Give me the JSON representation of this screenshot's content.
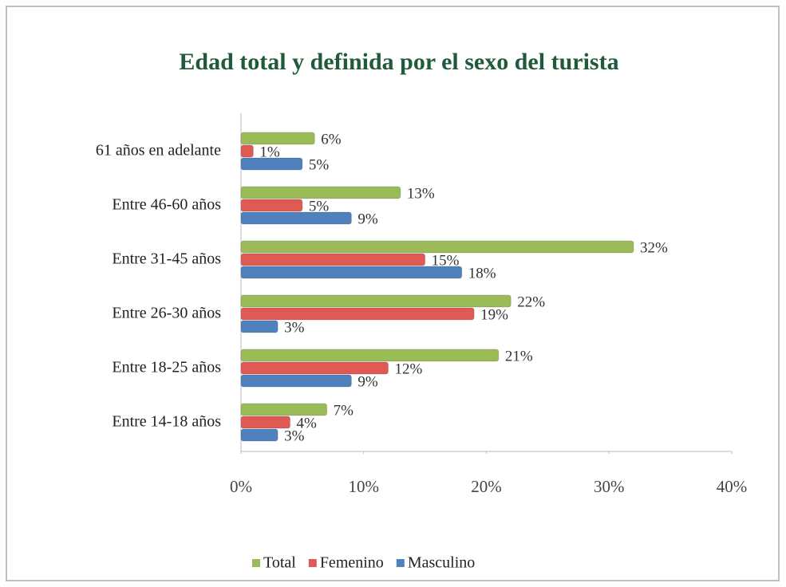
{
  "chart_data": {
    "type": "bar",
    "orientation": "horizontal",
    "title": "Edad total y definida por el sexo del turista",
    "categories": [
      "61 años en adelante",
      "Entre 46-60 años",
      "Entre 31-45 años",
      "Entre 26-30 años",
      "Entre 18-25 años",
      "Entre 14-18 años"
    ],
    "series": [
      {
        "name": "Total",
        "color": "#9bbb59",
        "values": [
          6,
          13,
          32,
          22,
          21,
          7
        ],
        "value_labels": [
          "6%",
          "13%",
          "32%",
          "22%",
          "21%",
          "7%"
        ]
      },
      {
        "name": "Femenino",
        "color": "#e05a55",
        "values": [
          1,
          5,
          15,
          19,
          12,
          4
        ],
        "value_labels": [
          "1%",
          "5%",
          "15%",
          "19%",
          "12%",
          "4%"
        ]
      },
      {
        "name": "Masculino",
        "color": "#4f81bd",
        "values": [
          5,
          9,
          18,
          3,
          9,
          3
        ],
        "value_labels": [
          "5%",
          "9%",
          "18%",
          "3%",
          "9%",
          "3%"
        ]
      }
    ],
    "xlim": [
      0,
      40
    ],
    "xticks": [
      {
        "value": 0,
        "label": "0%"
      },
      {
        "value": 10,
        "label": "10%"
      },
      {
        "value": 20,
        "label": "20%"
      },
      {
        "value": 30,
        "label": "30%"
      },
      {
        "value": 40,
        "label": "40%"
      }
    ],
    "legend": "bottom"
  }
}
